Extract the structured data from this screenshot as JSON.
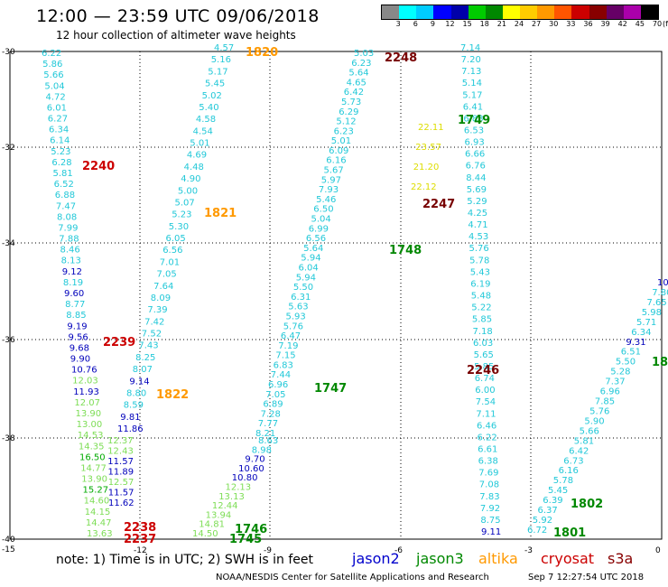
{
  "header": {
    "title": "12:00 — 23:59 UTC 09/06/2018",
    "subtitle": "12 hour collection of altimeter wave heights"
  },
  "colorbar": {
    "colors": [
      "#888888",
      "#00ffff",
      "#00ccff",
      "#0000ff",
      "#0000aa",
      "#00cc00",
      "#008800",
      "#ffff00",
      "#ffcc00",
      "#ff9900",
      "#ff5500",
      "#cc0000",
      "#880000",
      "#660066",
      "#aa00aa",
      "#000000"
    ],
    "ticks": [
      "3",
      "6",
      "9",
      "12",
      "15",
      "18",
      "21",
      "24",
      "27",
      "30",
      "33",
      "36",
      "39",
      "42",
      "45",
      "70",
      "(ft)"
    ]
  },
  "axes": {
    "lat_labels": [
      "-30",
      "-32",
      "-34",
      "-36",
      "-38",
      "-40"
    ],
    "lon_labels": [
      "-15",
      "-12",
      "-9",
      "-6",
      "-3",
      "0"
    ]
  },
  "tracks": [
    {
      "name": "t2240",
      "heights": [
        "6.22",
        "5.86",
        "5.66",
        "5.04",
        "4.72",
        "6.01",
        "6.27",
        "6.34",
        "6.14",
        "5.23",
        "6.28",
        "5.81",
        "6.52",
        "6.88",
        "7.47",
        "8.08",
        "7.99",
        "7.88",
        "8.46",
        "8.13",
        "9.12",
        "8.19",
        "9.60",
        "8.77",
        "8.85",
        "9.19",
        "9.56",
        "9.68",
        "9.90",
        "10.76",
        "12.03",
        "11.93",
        "12.07",
        "13.90",
        "13.00",
        "14.53",
        "14.35",
        "16.50",
        "14.77",
        "13.90",
        "15.27",
        "14.60",
        "14.15",
        "14.47",
        "13.63"
      ]
    },
    {
      "name": "t2238",
      "heights": [
        "12.37",
        "12.43",
        "11.57",
        "11.89",
        "12.57",
        "11.57",
        "11.62"
      ]
    },
    {
      "name": "t1820",
      "heights": [
        "4.57",
        "5.16",
        "5.17",
        "5.45",
        "5.02",
        "5.40",
        "4.58",
        "4.54",
        "5.01",
        "4.69",
        "4.48",
        "4.90",
        "5.00",
        "5.07",
        "5.23",
        "5.30",
        "6.05",
        "6.56",
        "7.01",
        "7.05",
        "7.64",
        "8.09",
        "7.39",
        "7.42",
        "7.52",
        "7.43",
        "8.25",
        "8.07",
        "9.14",
        "8.80",
        "8.59",
        "9.81",
        "11.86"
      ]
    },
    {
      "name": "t1746",
      "heights": [
        "8.63",
        "8.98",
        "9.70",
        "10.60",
        "10.80",
        "12.13",
        "13.13",
        "12.44",
        "13.94",
        "14.81",
        "14.50"
      ]
    },
    {
      "name": "t2248",
      "heights": [
        "5.03",
        "6.23",
        "5.64",
        "4.65",
        "6.42",
        "5.73",
        "6.29",
        "5.12",
        "6.23",
        "5.01",
        "6.09",
        "6.16",
        "5.67",
        "5.97",
        "7.93",
        "5.46",
        "6.50",
        "5.04",
        "6.99",
        "6.56",
        "5.64",
        "5.94",
        "6.04",
        "5.94",
        "5.50",
        "6.31",
        "5.63",
        "5.93",
        "5.76",
        "6.47",
        "7.19",
        "7.15",
        "6.83",
        "7.44",
        "6.96",
        "7.05",
        "6.89",
        "7.28",
        "7.77",
        "8.21"
      ]
    },
    {
      "name": "t1749",
      "heights": [
        "7.14",
        "7.20",
        "7.13",
        "5.14",
        "5.17",
        "6.41",
        "6.83",
        "6.53",
        "6.93",
        "6.66",
        "6.76",
        "8.44",
        "5.69",
        "5.29",
        "4.25",
        "4.71",
        "4.53",
        "5.76",
        "5.78",
        "5.43",
        "6.19",
        "5.48",
        "5.22",
        "5.85",
        "7.18",
        "6.03",
        "5.65",
        "5.85",
        "6.74",
        "6.00",
        "7.54",
        "7.11",
        "6.46",
        "6.22",
        "6.61",
        "6.38",
        "7.69",
        "7.08",
        "7.83",
        "7.92",
        "8.75",
        "9.11"
      ]
    },
    {
      "name": "t1749b",
      "heights": [
        "22.11",
        "23.57",
        "21.20",
        "22.12"
      ]
    },
    {
      "name": "t1802",
      "heights": [
        "10",
        "7.80",
        "7.65",
        "5.98",
        "5.71",
        "6.34",
        "9.31",
        "6.51",
        "5.50",
        "5.28",
        "7.37",
        "6.96",
        "7.85",
        "5.76",
        "5.90",
        "5.66",
        "5.81",
        "6.42",
        "6.73",
        "6.16",
        "5.78",
        "5.45",
        "6.39",
        "6.37",
        "5.92",
        "6.72"
      ]
    }
  ],
  "labels": [
    {
      "text": "2240",
      "color": "#cc0000"
    },
    {
      "text": "2239",
      "color": "#cc0000"
    },
    {
      "text": "2238",
      "color": "#cc0000"
    },
    {
      "text": "2237",
      "color": "#cc0000"
    },
    {
      "text": "1820",
      "color": "#ff9900"
    },
    {
      "text": "1821",
      "color": "#ff9900"
    },
    {
      "text": "1822",
      "color": "#ff9900"
    },
    {
      "text": "1746",
      "color": "#008800"
    },
    {
      "text": "1745",
      "color": "#008800"
    },
    {
      "text": "2248",
      "color": "#770000"
    },
    {
      "text": "2247",
      "color": "#770000"
    },
    {
      "text": "2246",
      "color": "#770000"
    },
    {
      "text": "1749",
      "color": "#008800"
    },
    {
      "text": "1748",
      "color": "#008800"
    },
    {
      "text": "1747",
      "color": "#008800"
    },
    {
      "text": "1802",
      "color": "#008800"
    },
    {
      "text": "1801",
      "color": "#008800"
    },
    {
      "text": "18",
      "color": "#008800"
    }
  ],
  "footer": {
    "note": "note:  1) Time is in UTC;  2) SWH is in feet",
    "legend": [
      {
        "name": "jason2",
        "color": "#0000cc"
      },
      {
        "name": "jason3",
        "color": "#008800"
      },
      {
        "name": "altika",
        "color": "#ff9900"
      },
      {
        "name": "cryosat",
        "color": "#cc0000"
      },
      {
        "name": "s3a",
        "color": "#880000"
      }
    ],
    "credit": "NOAA/NESDIS Center for Satellite Applications and Research",
    "timestamp": "Sep  7 12:27:54 UTC 2018"
  }
}
